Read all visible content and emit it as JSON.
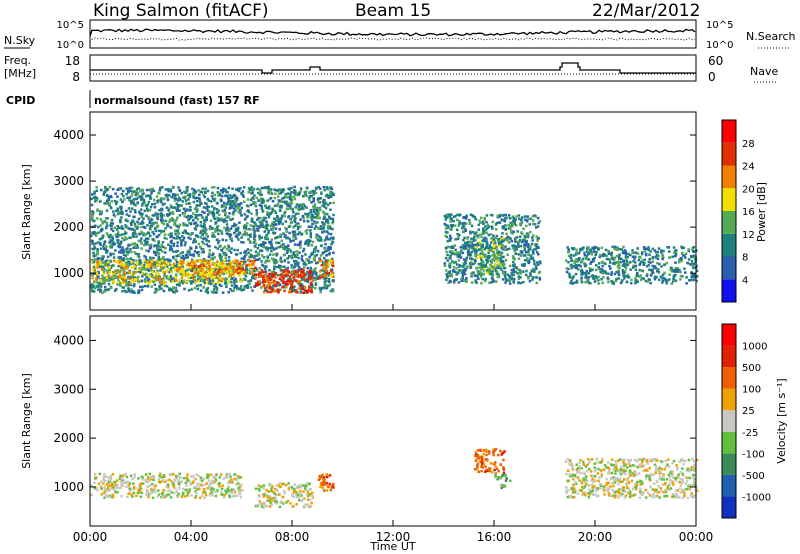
{
  "header": {
    "station": "King Salmon (fitACF)",
    "beam": "Beam 15",
    "date": "22/Mar/2012"
  },
  "top_panels": {
    "noise": {
      "left_label": "N.Sky",
      "right_label": "N.Search",
      "left_ticks": [
        "10^5",
        "10^0"
      ],
      "right_ticks": [
        "10^5",
        "10^0"
      ]
    },
    "freq": {
      "left_label_1": "Freq.",
      "left_label_2": "[MHz]",
      "right_label": "Nave",
      "left_ticks": [
        "18",
        "8"
      ],
      "right_ticks": [
        "60",
        "0"
      ]
    },
    "cpid": {
      "label": "CPID",
      "value": "normalsound (fast) 157 RF"
    }
  },
  "chart_data": [
    {
      "type": "heatmap",
      "name": "power",
      "ylabel": "Slant Range [km]",
      "xlabel": "Time UT",
      "ylim": [
        200,
        4500
      ],
      "y_ticks": [
        "1000",
        "2000",
        "3000",
        "4000"
      ],
      "x_ticks": [
        "00:00",
        "04:00",
        "08:00",
        "12:00",
        "16:00",
        "20:00",
        "00:00"
      ],
      "x_range_hours": [
        0,
        24
      ],
      "colorbar": {
        "label": "Power [dB]",
        "ticks": [
          "4",
          "8",
          "12",
          "16",
          "20",
          "24",
          "28"
        ],
        "colors": [
          "#1010f0",
          "#2a5fb0",
          "#1f7f7f",
          "#55aa55",
          "#f0e000",
          "#f08000",
          "#e03000",
          "#ff0000"
        ]
      },
      "regions": [
        {
          "t0": 0.0,
          "t1": 9.6,
          "r0": 600,
          "r1": 2900,
          "level": 2
        },
        {
          "t0": 0.0,
          "t1": 6.0,
          "r0": 800,
          "r1": 1300,
          "level": 4
        },
        {
          "t0": 3.5,
          "t1": 6.5,
          "r0": 1000,
          "r1": 1300,
          "level": 5
        },
        {
          "t0": 6.5,
          "t1": 8.8,
          "r0": 600,
          "r1": 1100,
          "level": 6
        },
        {
          "t0": 9.0,
          "t1": 9.6,
          "r0": 900,
          "r1": 1300,
          "level": 5
        },
        {
          "t0": 14.0,
          "t1": 17.8,
          "r0": 800,
          "r1": 2300,
          "level": 2
        },
        {
          "t0": 15.2,
          "t1": 16.4,
          "r0": 1000,
          "r1": 1800,
          "level": 3
        },
        {
          "t0": 18.8,
          "t1": 24.0,
          "r0": 800,
          "r1": 1600,
          "level": 2
        }
      ]
    },
    {
      "type": "heatmap",
      "name": "velocity",
      "ylabel": "Slant Range [km]",
      "xlabel": "Time UT",
      "ylim": [
        200,
        4500
      ],
      "y_ticks": [
        "1000",
        "2000",
        "3000",
        "4000"
      ],
      "x_ticks": [
        "00:00",
        "04:00",
        "08:00",
        "12:00",
        "16:00",
        "20:00",
        "00:00"
      ],
      "x_range_hours": [
        0,
        24
      ],
      "colorbar": {
        "label": "Velocity [m s⁻¹]",
        "ticks": [
          "1000",
          "500",
          "100",
          "25",
          "-25",
          "-100",
          "-500",
          "-1000"
        ],
        "colors": [
          "#1030c0",
          "#2060b0",
          "#3a8a5a",
          "#60c040",
          "#c8c8c0",
          "#f0a000",
          "#f06000",
          "#e02000",
          "#ff0000"
        ]
      },
      "regions": [
        {
          "t0": 0.0,
          "t1": 6.0,
          "r0": 800,
          "r1": 1300,
          "level": 4
        },
        {
          "t0": 6.5,
          "t1": 8.8,
          "r0": 600,
          "r1": 1100,
          "level": 4
        },
        {
          "t0": 9.0,
          "t1": 9.6,
          "r0": 900,
          "r1": 1300,
          "level": 6
        },
        {
          "t0": 15.2,
          "t1": 16.4,
          "r0": 1300,
          "r1": 1800,
          "level": 6
        },
        {
          "t0": 16.0,
          "t1": 16.6,
          "r0": 1000,
          "r1": 1300,
          "level": 3
        },
        {
          "t0": 18.8,
          "t1": 24.0,
          "r0": 800,
          "r1": 1600,
          "level": 4
        }
      ]
    }
  ],
  "xlabel": "Time UT"
}
